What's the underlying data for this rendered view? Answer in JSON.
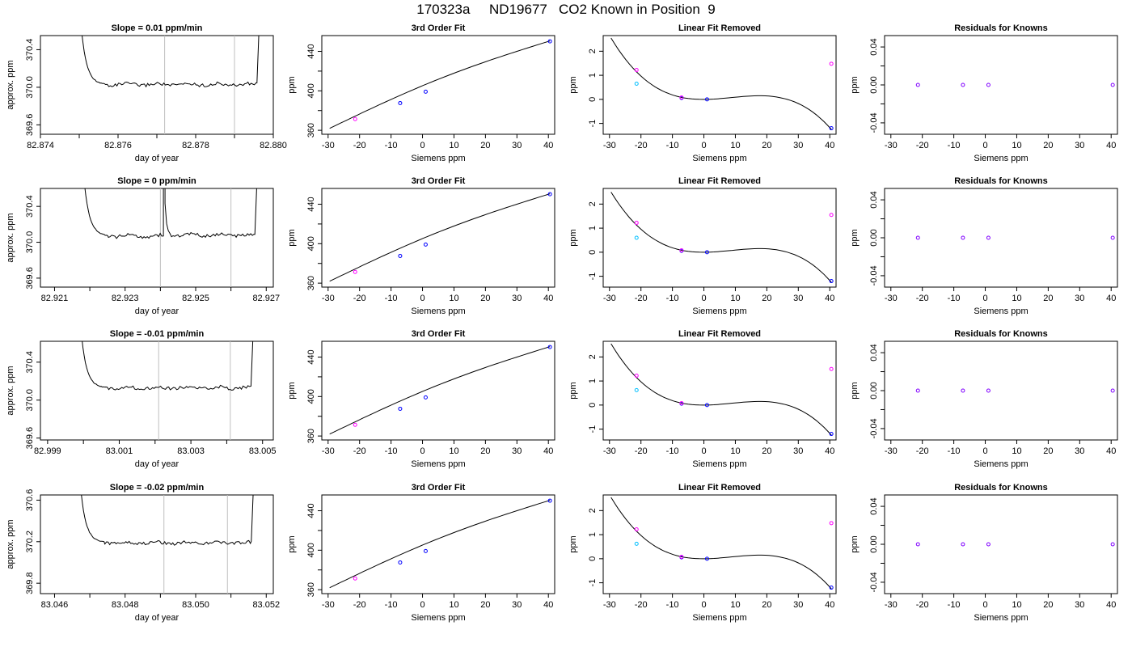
{
  "figure": {
    "title": "170323a     ND19677   CO2 Known in Position  9"
  },
  "style": {
    "known_point_color": "#ff00ff",
    "fit_point_color": "#0000ff",
    "reference_point_color": "#00bfff",
    "line_color": "#000000",
    "marker_line_color": "#bfbfbf"
  },
  "chart_data": [
    {
      "type": "line",
      "row": 1,
      "title": "Slope =  0.01  ppm/min",
      "xlabel": "day of year",
      "ylabel": "approx. ppm",
      "xlim": [
        82.874,
        82.88
      ],
      "ylim": [
        369.5,
        370.55
      ],
      "xticks": [
        "82.874",
        "82.876",
        "82.878",
        "82.880"
      ],
      "xtick_values": [
        82.874,
        82.876,
        82.878,
        82.88
      ],
      "xminor": [
        82.875,
        82.877,
        82.879
      ],
      "yticks": [
        "369.6",
        "370.0",
        "370.4"
      ],
      "ytick_values": [
        369.6,
        370.0,
        370.4
      ],
      "markers": [
        82.8772,
        82.879
      ],
      "start": 82.8752,
      "end": 82.8796,
      "level": 370.03,
      "level2": null,
      "split": null
    },
    {
      "type": "line",
      "row": 2,
      "title": "Slope =  0  ppm/min",
      "xlabel": "day of year",
      "ylabel": "approx. ppm",
      "xlim": [
        82.9206,
        82.9272
      ],
      "ylim": [
        369.5,
        370.6
      ],
      "xticks": [
        "82.921",
        "82.923",
        "82.925",
        "82.927"
      ],
      "xtick_values": [
        82.921,
        82.923,
        82.925,
        82.927
      ],
      "xminor": [
        82.922,
        82.924,
        82.926
      ],
      "yticks": [
        "369.6",
        "370.0",
        "370.4"
      ],
      "ytick_values": [
        369.6,
        370.0,
        370.4
      ],
      "markers": [
        82.924,
        82.926
      ],
      "start": 82.922,
      "end": 82.9267,
      "level": 370.07,
      "level2": 370.08,
      "split": 82.9241
    },
    {
      "type": "line",
      "row": 3,
      "title": "Slope =  -0.01  ppm/min",
      "xlabel": "day of year",
      "ylabel": "approx. ppm",
      "xlim": [
        82.9988,
        83.0053
      ],
      "ylim": [
        369.58,
        370.62
      ],
      "xticks": [
        "82.999",
        "83.001",
        "83.003",
        "83.005"
      ],
      "xtick_values": [
        82.999,
        83.001,
        83.003,
        83.005
      ],
      "xminor": [
        83.0,
        83.002,
        83.004
      ],
      "yticks": [
        "369.6",
        "370.0",
        "370.4"
      ],
      "ytick_values": [
        369.6,
        370.0,
        370.4
      ],
      "markers": [
        83.0021,
        83.0041
      ],
      "start": 83.0001,
      "end": 83.0047,
      "level": 370.13,
      "level2": null,
      "split": null
    },
    {
      "type": "line",
      "row": 4,
      "title": "Slope =  -0.02  ppm/min",
      "xlabel": "day of year",
      "ylabel": "approx. ppm",
      "xlim": [
        83.0456,
        83.0522
      ],
      "ylim": [
        369.7,
        370.65
      ],
      "xticks": [
        "83.046",
        "83.048",
        "83.050",
        "83.052"
      ],
      "xtick_values": [
        83.046,
        83.048,
        83.05,
        83.052
      ],
      "xminor": [
        83.047,
        83.049,
        83.051
      ],
      "yticks": [
        "369.8",
        "370.2",
        "370.6"
      ],
      "ytick_values": [
        369.8,
        370.2,
        370.6
      ],
      "markers": [
        83.0491,
        83.0509
      ],
      "start": 83.0469,
      "end": 83.0516,
      "level": 370.19,
      "level2": null,
      "split": null
    },
    {
      "type": "scatter",
      "row": 1,
      "title": "3rd Order Fit",
      "xlabel": "Siemens ppm",
      "ylabel": "ppm",
      "xlim": [
        -32,
        42
      ],
      "ylim": [
        356,
        456
      ],
      "xticks": [
        "-30",
        "-20",
        "-10",
        "0",
        "10",
        "20",
        "30",
        "40"
      ],
      "xtick_values": [
        -30,
        -20,
        -10,
        0,
        10,
        20,
        30,
        40
      ],
      "yticks": [
        "360",
        "400",
        "440"
      ],
      "ytick_values": [
        360,
        400,
        440
      ],
      "yminor": [
        380,
        420
      ],
      "points": [
        {
          "x": -21.4,
          "y": 371.4,
          "c": "m"
        },
        {
          "x": -7.1,
          "y": 387.6,
          "c": "b"
        },
        {
          "x": 1.0,
          "y": 399.1,
          "c": "b"
        },
        {
          "x": 40.5,
          "y": 450.2,
          "c": "b"
        }
      ],
      "curve": {
        "x0": -29.5,
        "x1": 40.5,
        "y0": 362.0,
        "y1": 450.6
      }
    },
    {
      "type": "scatter",
      "row": 2,
      "title": "3rd Order Fit",
      "xlabel": "Siemens ppm",
      "ylabel": "ppm",
      "xlim": [
        -32,
        42
      ],
      "ylim": [
        356,
        456
      ],
      "xticks": [
        "-30",
        "-20",
        "-10",
        "0",
        "10",
        "20",
        "30",
        "40"
      ],
      "xtick_values": [
        -30,
        -20,
        -10,
        0,
        10,
        20,
        30,
        40
      ],
      "yticks": [
        "360",
        "400",
        "440"
      ],
      "ytick_values": [
        360,
        400,
        440
      ],
      "yminor": [
        380,
        420
      ],
      "points": [
        {
          "x": -21.4,
          "y": 371.4,
          "c": "m"
        },
        {
          "x": -7.1,
          "y": 387.6,
          "c": "b"
        },
        {
          "x": 1.0,
          "y": 399.1,
          "c": "b"
        },
        {
          "x": 40.5,
          "y": 450.2,
          "c": "b"
        }
      ],
      "curve": {
        "x0": -29.5,
        "x1": 40.5,
        "y0": 362.0,
        "y1": 450.6
      }
    },
    {
      "type": "scatter",
      "row": 3,
      "title": "3rd Order Fit",
      "xlabel": "Siemens ppm",
      "ylabel": "ppm",
      "xlim": [
        -32,
        42
      ],
      "ylim": [
        356,
        456
      ],
      "xticks": [
        "-30",
        "-20",
        "-10",
        "0",
        "10",
        "20",
        "30",
        "40"
      ],
      "xtick_values": [
        -30,
        -20,
        -10,
        0,
        10,
        20,
        30,
        40
      ],
      "yticks": [
        "360",
        "400",
        "440"
      ],
      "ytick_values": [
        360,
        400,
        440
      ],
      "yminor": [
        380,
        420
      ],
      "points": [
        {
          "x": -21.4,
          "y": 371.4,
          "c": "m"
        },
        {
          "x": -7.1,
          "y": 387.6,
          "c": "b"
        },
        {
          "x": 1.0,
          "y": 399.1,
          "c": "b"
        },
        {
          "x": 40.5,
          "y": 450.2,
          "c": "b"
        }
      ],
      "curve": {
        "x0": -29.5,
        "x1": 40.5,
        "y0": 362.0,
        "y1": 450.6
      }
    },
    {
      "type": "scatter",
      "row": 4,
      "title": "3rd Order Fit",
      "xlabel": "Siemens ppm",
      "ylabel": "ppm",
      "xlim": [
        -32,
        42
      ],
      "ylim": [
        356,
        456
      ],
      "xticks": [
        "-30",
        "-20",
        "-10",
        "0",
        "10",
        "20",
        "30",
        "40"
      ],
      "xtick_values": [
        -30,
        -20,
        -10,
        0,
        10,
        20,
        30,
        40
      ],
      "yticks": [
        "360",
        "400",
        "440"
      ],
      "ytick_values": [
        360,
        400,
        440
      ],
      "yminor": [
        380,
        420
      ],
      "points": [
        {
          "x": -21.4,
          "y": 371.4,
          "c": "m"
        },
        {
          "x": -7.1,
          "y": 387.6,
          "c": "b"
        },
        {
          "x": 1.0,
          "y": 399.1,
          "c": "b"
        },
        {
          "x": 40.5,
          "y": 450.2,
          "c": "b"
        }
      ],
      "curve": {
        "x0": -29.5,
        "x1": 40.5,
        "y0": 362.0,
        "y1": 450.6
      }
    },
    {
      "type": "scatter",
      "row": 1,
      "title": "Linear Fit Removed",
      "xlabel": "Siemens ppm",
      "ylabel": "ppm",
      "xlim": [
        -32,
        42
      ],
      "ylim": [
        -1.45,
        2.65
      ],
      "xticks": [
        "-30",
        "-20",
        "-10",
        "0",
        "10",
        "20",
        "30",
        "40"
      ],
      "xtick_values": [
        -30,
        -20,
        -10,
        0,
        10,
        20,
        30,
        40
      ],
      "yticks": [
        "-1",
        "0",
        "1",
        "2"
      ],
      "ytick_values": [
        -1,
        0,
        1,
        2
      ],
      "points": [
        {
          "x": -21.4,
          "y": 1.22,
          "c": "m"
        },
        {
          "x": -21.4,
          "y": 0.65,
          "c": "c"
        },
        {
          "x": -7.1,
          "y": 0.06,
          "c": "b"
        },
        {
          "x": -7.1,
          "y": 0.08,
          "c": "m"
        },
        {
          "x": 1.0,
          "y": 0.0,
          "c": "b"
        },
        {
          "x": 40.5,
          "y": 1.48,
          "c": "m"
        },
        {
          "x": 40.5,
          "y": -1.2,
          "c": "b"
        }
      ],
      "cubic": {
        "x0": -29.5,
        "x1": 40.5,
        "y0": 2.55,
        "ymin_x": 1.0,
        "ymax_x": 18.0,
        "ymax": 0.15,
        "yend": -1.25
      }
    },
    {
      "type": "scatter",
      "row": 2,
      "title": "Linear Fit Removed",
      "xlabel": "Siemens ppm",
      "ylabel": "ppm",
      "xlim": [
        -32,
        42
      ],
      "ylim": [
        -1.45,
        2.65
      ],
      "xticks": [
        "-30",
        "-20",
        "-10",
        "0",
        "10",
        "20",
        "30",
        "40"
      ],
      "xtick_values": [
        -30,
        -20,
        -10,
        0,
        10,
        20,
        30,
        40
      ],
      "yticks": [
        "-1",
        "0",
        "1",
        "2"
      ],
      "ytick_values": [
        -1,
        0,
        1,
        2
      ],
      "points": [
        {
          "x": -21.4,
          "y": 1.22,
          "c": "m"
        },
        {
          "x": -21.4,
          "y": 0.6,
          "c": "c"
        },
        {
          "x": -7.1,
          "y": 0.06,
          "c": "b"
        },
        {
          "x": -7.1,
          "y": 0.08,
          "c": "m"
        },
        {
          "x": 1.0,
          "y": 0.0,
          "c": "b"
        },
        {
          "x": 40.5,
          "y": 1.55,
          "c": "m"
        },
        {
          "x": 40.5,
          "y": -1.2,
          "c": "b"
        }
      ],
      "cubic": {
        "x0": -29.5,
        "x1": 40.5,
        "y0": 2.5,
        "ymin_x": 1.0,
        "ymax_x": 18.0,
        "ymax": 0.15,
        "yend": -1.25
      }
    },
    {
      "type": "scatter",
      "row": 3,
      "title": "Linear Fit Removed",
      "xlabel": "Siemens ppm",
      "ylabel": "ppm",
      "xlim": [
        -32,
        42
      ],
      "ylim": [
        -1.45,
        2.65
      ],
      "xticks": [
        "-30",
        "-20",
        "-10",
        "0",
        "10",
        "20",
        "30",
        "40"
      ],
      "xtick_values": [
        -30,
        -20,
        -10,
        0,
        10,
        20,
        30,
        40
      ],
      "yticks": [
        "-1",
        "0",
        "1",
        "2"
      ],
      "ytick_values": [
        -1,
        0,
        1,
        2
      ],
      "points": [
        {
          "x": -21.4,
          "y": 1.22,
          "c": "m"
        },
        {
          "x": -21.4,
          "y": 0.62,
          "c": "c"
        },
        {
          "x": -7.1,
          "y": 0.06,
          "c": "b"
        },
        {
          "x": -7.1,
          "y": 0.08,
          "c": "m"
        },
        {
          "x": 1.0,
          "y": 0.0,
          "c": "b"
        },
        {
          "x": 40.5,
          "y": 1.5,
          "c": "m"
        },
        {
          "x": 40.5,
          "y": -1.2,
          "c": "b"
        }
      ],
      "cubic": {
        "x0": -29.5,
        "x1": 40.5,
        "y0": 2.55,
        "ymin_x": 1.0,
        "ymax_x": 18.0,
        "ymax": 0.15,
        "yend": -1.25
      }
    },
    {
      "type": "scatter",
      "row": 4,
      "title": "Linear Fit Removed",
      "xlabel": "Siemens ppm",
      "ylabel": "ppm",
      "xlim": [
        -32,
        42
      ],
      "ylim": [
        -1.45,
        2.65
      ],
      "xticks": [
        "-30",
        "-20",
        "-10",
        "0",
        "10",
        "20",
        "30",
        "40"
      ],
      "xtick_values": [
        -30,
        -20,
        -10,
        0,
        10,
        20,
        30,
        40
      ],
      "yticks": [
        "-1",
        "0",
        "1",
        "2"
      ],
      "ytick_values": [
        -1,
        0,
        1,
        2
      ],
      "points": [
        {
          "x": -21.4,
          "y": 1.22,
          "c": "m"
        },
        {
          "x": -21.4,
          "y": 0.62,
          "c": "c"
        },
        {
          "x": -7.1,
          "y": 0.06,
          "c": "b"
        },
        {
          "x": -7.1,
          "y": 0.08,
          "c": "m"
        },
        {
          "x": 1.0,
          "y": 0.0,
          "c": "b"
        },
        {
          "x": 40.5,
          "y": 1.48,
          "c": "m"
        },
        {
          "x": 40.5,
          "y": -1.2,
          "c": "b"
        }
      ],
      "cubic": {
        "x0": -29.5,
        "x1": 40.5,
        "y0": 2.55,
        "ymin_x": 1.0,
        "ymax_x": 18.0,
        "ymax": 0.15,
        "yend": -1.25
      }
    },
    {
      "type": "scatter",
      "row": 1,
      "title": "Residuals for Knowns",
      "xlabel": "Siemens ppm",
      "ylabel": "ppm",
      "xlim": [
        -32,
        42
      ],
      "ylim": [
        -0.052,
        0.052
      ],
      "xticks": [
        "-30",
        "-20",
        "-10",
        "0",
        "10",
        "20",
        "30",
        "40"
      ],
      "xtick_values": [
        -30,
        -20,
        -10,
        0,
        10,
        20,
        30,
        40
      ],
      "yticks": [
        "-0.04",
        "0.00",
        "0.04"
      ],
      "ytick_values": [
        -0.04,
        0.0,
        0.04
      ],
      "yminor": [
        -0.02,
        0.02
      ],
      "points": [
        {
          "x": -21.4,
          "y": 0.0,
          "c": "p"
        },
        {
          "x": -7.1,
          "y": 0.0,
          "c": "p"
        },
        {
          "x": 1.0,
          "y": 0.0,
          "c": "p"
        },
        {
          "x": 40.5,
          "y": 0.0,
          "c": "p"
        }
      ]
    },
    {
      "type": "scatter",
      "row": 2,
      "title": "Residuals for Knowns",
      "xlabel": "Siemens ppm",
      "ylabel": "ppm",
      "xlim": [
        -32,
        42
      ],
      "ylim": [
        -0.052,
        0.052
      ],
      "xticks": [
        "-30",
        "-20",
        "-10",
        "0",
        "10",
        "20",
        "30",
        "40"
      ],
      "xtick_values": [
        -30,
        -20,
        -10,
        0,
        10,
        20,
        30,
        40
      ],
      "yticks": [
        "-0.04",
        "0.00",
        "0.04"
      ],
      "ytick_values": [
        -0.04,
        0.0,
        0.04
      ],
      "yminor": [
        -0.02,
        0.02
      ],
      "points": [
        {
          "x": -21.4,
          "y": 0.0,
          "c": "p"
        },
        {
          "x": -7.1,
          "y": 0.0,
          "c": "p"
        },
        {
          "x": 1.0,
          "y": 0.0,
          "c": "p"
        },
        {
          "x": 40.5,
          "y": 0.0,
          "c": "p"
        }
      ]
    },
    {
      "type": "scatter",
      "row": 3,
      "title": "Residuals for Knowns",
      "xlabel": "Siemens ppm",
      "ylabel": "ppm",
      "xlim": [
        -32,
        42
      ],
      "ylim": [
        -0.052,
        0.052
      ],
      "xticks": [
        "-30",
        "-20",
        "-10",
        "0",
        "10",
        "20",
        "30",
        "40"
      ],
      "xtick_values": [
        -30,
        -20,
        -10,
        0,
        10,
        20,
        30,
        40
      ],
      "yticks": [
        "-0.04",
        "0.00",
        "0.04"
      ],
      "ytick_values": [
        -0.04,
        0.0,
        0.04
      ],
      "yminor": [
        -0.02,
        0.02
      ],
      "points": [
        {
          "x": -21.4,
          "y": 0.0,
          "c": "p"
        },
        {
          "x": -7.1,
          "y": 0.0,
          "c": "p"
        },
        {
          "x": 1.0,
          "y": 0.0,
          "c": "p"
        },
        {
          "x": 40.5,
          "y": 0.0,
          "c": "p"
        }
      ]
    },
    {
      "type": "scatter",
      "row": 4,
      "title": "Residuals for Knowns",
      "xlabel": "Siemens ppm",
      "ylabel": "ppm",
      "xlim": [
        -32,
        42
      ],
      "ylim": [
        -0.052,
        0.052
      ],
      "xticks": [
        "-30",
        "-20",
        "-10",
        "0",
        "10",
        "20",
        "30",
        "40"
      ],
      "xtick_values": [
        -30,
        -20,
        -10,
        0,
        10,
        20,
        30,
        40
      ],
      "yticks": [
        "-0.04",
        "0.00",
        "0.04"
      ],
      "ytick_values": [
        -0.04,
        0.0,
        0.04
      ],
      "yminor": [
        -0.02,
        0.02
      ],
      "points": [
        {
          "x": -21.4,
          "y": 0.0,
          "c": "p"
        },
        {
          "x": -7.1,
          "y": 0.0,
          "c": "p"
        },
        {
          "x": 1.0,
          "y": 0.0,
          "c": "p"
        },
        {
          "x": 40.5,
          "y": 0.0,
          "c": "p"
        }
      ]
    }
  ]
}
